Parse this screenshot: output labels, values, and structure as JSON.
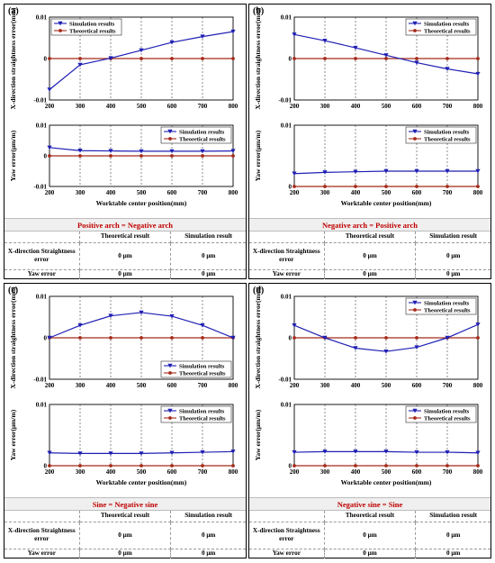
{
  "panels": [
    {
      "label": "(a)",
      "case_title": "Positive arch = Negative arch",
      "table": {
        "col_headers": [
          "Theoretical result",
          "Simulation result"
        ],
        "rows": [
          {
            "label": "X-direction Straightness error",
            "theoretical": "0 μm",
            "simulation": "0 μm"
          },
          {
            "label": "Yaw error",
            "theoretical": "0 μm",
            "simulation": "0 μm"
          }
        ]
      }
    },
    {
      "label": "(b)",
      "case_title": "Negative arch = Positive arch",
      "table": {
        "col_headers": [
          "Theoretical result",
          "Simulation result"
        ],
        "rows": [
          {
            "label": "X-direction Straightness error",
            "theoretical": "0 μm",
            "simulation": "0 μm"
          },
          {
            "label": "Yaw error",
            "theoretical": "0 μm",
            "simulation": "0 μm"
          }
        ]
      }
    },
    {
      "label": "(c)",
      "case_title": "Sine = Negative sine",
      "table": {
        "col_headers": [
          "Theoretical result",
          "Simulation result"
        ],
        "rows": [
          {
            "label": "X-direction Straightness error",
            "theoretical": "0 μm",
            "simulation": "0 μm"
          },
          {
            "label": "Yaw error",
            "theoretical": "0 μm",
            "simulation": "0 μm"
          }
        ]
      }
    },
    {
      "label": "(d)",
      "case_title": "Negative sine = Sine",
      "table": {
        "col_headers": [
          "Theoretical result",
          "Simulation result"
        ],
        "rows": [
          {
            "label": "X-direction Straightness error",
            "theoretical": "0 μm",
            "simulation": "0 μm"
          },
          {
            "label": "Yaw error",
            "theoretical": "0 μm",
            "simulation": "0 μm"
          }
        ]
      }
    }
  ],
  "chart_data": [
    {
      "panel": "a",
      "type": "line",
      "xlabel": "",
      "ylabel": "X-direction straightness error(mm)",
      "x": [
        200,
        300,
        400,
        500,
        600,
        700,
        800
      ],
      "xticks": [
        "200",
        "300",
        "400",
        "500",
        "600",
        "700",
        "800"
      ],
      "ylim": [
        -0.01,
        0.01
      ],
      "yticks": [
        "-0.01",
        "0",
        "0.01"
      ],
      "legend": "top-left",
      "grid": "vertical dashed",
      "colors": {
        "simulation": "#1f1fb4",
        "theoretical": "#a52a1a"
      },
      "series": [
        {
          "name": "Simulation results",
          "values": [
            -0.0075,
            -0.0015,
            0.0001,
            0.002,
            0.0039,
            0.0053,
            0.0065
          ]
        },
        {
          "name": "Theoretical results",
          "values": [
            0,
            0,
            0,
            0,
            0,
            0,
            0
          ]
        }
      ]
    },
    {
      "panel": "a",
      "type": "line",
      "xlabel": "Worktable center position(mm)",
      "ylabel": "Yaw error(μm/m)",
      "x": [
        200,
        300,
        400,
        500,
        600,
        700,
        800
      ],
      "xticks": [
        "200",
        "300",
        "400",
        "500",
        "600",
        "700",
        "800"
      ],
      "ylim": [
        -0.01,
        0.01
      ],
      "yticks": [
        "-0.01",
        "0",
        "0.01"
      ],
      "legend": "top-right",
      "grid": "vertical dashed",
      "colors": {
        "simulation": "#1f1fb4",
        "theoretical": "#a52a1a"
      },
      "series": [
        {
          "name": "Simulation results",
          "values": [
            0.0027,
            0.0017,
            0.0016,
            0.0015,
            0.0015,
            0.0015,
            0.0016
          ]
        },
        {
          "name": "Theoretical results",
          "values": [
            0,
            0,
            0,
            0,
            0,
            0,
            0
          ]
        }
      ]
    },
    {
      "panel": "b",
      "type": "line",
      "xlabel": "",
      "ylabel": "X-direction straightness error(mm)",
      "x": [
        200,
        300,
        400,
        500,
        600,
        700,
        800
      ],
      "xticks": [
        "200",
        "300",
        "400",
        "500",
        "600",
        "700",
        "800"
      ],
      "ylim": [
        -0.01,
        0.01
      ],
      "yticks": [
        "-0.01",
        "0",
        "0.01"
      ],
      "legend": "top-right",
      "grid": "vertical dashed",
      "colors": {
        "simulation": "#1f1fb4",
        "theoretical": "#a52a1a"
      },
      "series": [
        {
          "name": "Simulation results",
          "values": [
            0.0058,
            0.0043,
            0.0026,
            0.0008,
            -0.001,
            -0.0025,
            -0.0037
          ]
        },
        {
          "name": "Theoretical results",
          "values": [
            0,
            0,
            0,
            0,
            0,
            0,
            0
          ]
        }
      ]
    },
    {
      "panel": "b",
      "type": "line",
      "xlabel": "Worktable center position(mm)",
      "ylabel": "Yaw error(μm/m)",
      "x": [
        200,
        300,
        400,
        500,
        600,
        700,
        800
      ],
      "xticks": [
        "200",
        "300",
        "400",
        "500",
        "600",
        "700",
        "800"
      ],
      "ylim": [
        0,
        0.01
      ],
      "yticks": [
        "0",
        "0.01"
      ],
      "legend": "top-right",
      "grid": "vertical dashed",
      "colors": {
        "simulation": "#1f1fb4",
        "theoretical": "#a52a1a"
      },
      "series": [
        {
          "name": "Simulation results",
          "values": [
            0.0021,
            0.0023,
            0.0024,
            0.0025,
            0.0025,
            0.0025,
            0.0025
          ]
        },
        {
          "name": "Theoretical results",
          "values": [
            0,
            0,
            0,
            0,
            0,
            0,
            0
          ]
        }
      ]
    },
    {
      "panel": "c",
      "type": "line",
      "xlabel": "",
      "ylabel": "X-direction straightness error(mm)",
      "x": [
        200,
        300,
        400,
        500,
        600,
        700,
        800
      ],
      "xticks": [
        "200",
        "300",
        "400",
        "500",
        "600",
        "700",
        "800"
      ],
      "ylim": [
        -0.01,
        0.01
      ],
      "yticks": [
        "-0.01",
        "0",
        "0.01"
      ],
      "legend": "bottom-right",
      "grid": "vertical dashed",
      "colors": {
        "simulation": "#1f1fb4",
        "theoretical": "#a52a1a"
      },
      "series": [
        {
          "name": "Simulation results",
          "values": [
            0,
            0.003,
            0.0053,
            0.0061,
            0.0052,
            0.003,
            0
          ]
        },
        {
          "name": "Theoretical results",
          "values": [
            0,
            0,
            0,
            0,
            0,
            0,
            0
          ]
        }
      ]
    },
    {
      "panel": "c",
      "type": "line",
      "xlabel": "Worktable center position(mm)",
      "ylabel": "Yaw error(μm/m)",
      "x": [
        200,
        300,
        400,
        500,
        600,
        700,
        800
      ],
      "xticks": [
        "200",
        "300",
        "400",
        "500",
        "600",
        "700",
        "800"
      ],
      "ylim": [
        0,
        0.01
      ],
      "yticks": [
        "0",
        "0.01"
      ],
      "legend": "top-right",
      "grid": "vertical dashed",
      "colors": {
        "simulation": "#1f1fb4",
        "theoretical": "#a52a1a"
      },
      "series": [
        {
          "name": "Simulation results",
          "values": [
            0.0021,
            0.002,
            0.002,
            0.002,
            0.0021,
            0.0022,
            0.0023
          ]
        },
        {
          "name": "Theoretical results",
          "values": [
            0,
            0,
            0,
            0,
            0,
            0,
            0
          ]
        }
      ]
    },
    {
      "panel": "d",
      "type": "line",
      "xlabel": "",
      "ylabel": "X-direction straightness error(mm)",
      "x": [
        200,
        300,
        400,
        500,
        600,
        700,
        800
      ],
      "xticks": [
        "200",
        "300",
        "400",
        "500",
        "600",
        "700",
        "800"
      ],
      "ylim": [
        -0.01,
        0.01
      ],
      "yticks": [
        "-0.01",
        "0",
        "0.01"
      ],
      "legend": "top-right",
      "grid": "vertical dashed",
      "colors": {
        "simulation": "#1f1fb4",
        "theoretical": "#a52a1a"
      },
      "series": [
        {
          "name": "Simulation results",
          "values": [
            0.003,
            0,
            -0.0025,
            -0.0033,
            -0.0023,
            0,
            0.0032
          ]
        },
        {
          "name": "Theoretical results",
          "values": [
            0,
            0,
            0,
            0,
            0,
            0,
            0
          ]
        }
      ]
    },
    {
      "panel": "d",
      "type": "line",
      "xlabel": "Worktable center position(mm)",
      "ylabel": "Yaw error(μm/m)",
      "x": [
        200,
        300,
        400,
        500,
        600,
        700,
        800
      ],
      "xticks": [
        "200",
        "300",
        "400",
        "500",
        "600",
        "700",
        "800"
      ],
      "ylim": [
        0,
        0.01
      ],
      "yticks": [
        "0",
        "0.01"
      ],
      "legend": "top-right",
      "grid": "vertical dashed",
      "colors": {
        "simulation": "#1f1fb4",
        "theoretical": "#a52a1a"
      },
      "series": [
        {
          "name": "Simulation results",
          "values": [
            0.0022,
            0.0023,
            0.0023,
            0.0023,
            0.0022,
            0.0022,
            0.0021
          ]
        },
        {
          "name": "Theoretical results",
          "values": [
            0,
            0,
            0,
            0,
            0,
            0,
            0
          ]
        }
      ]
    }
  ]
}
